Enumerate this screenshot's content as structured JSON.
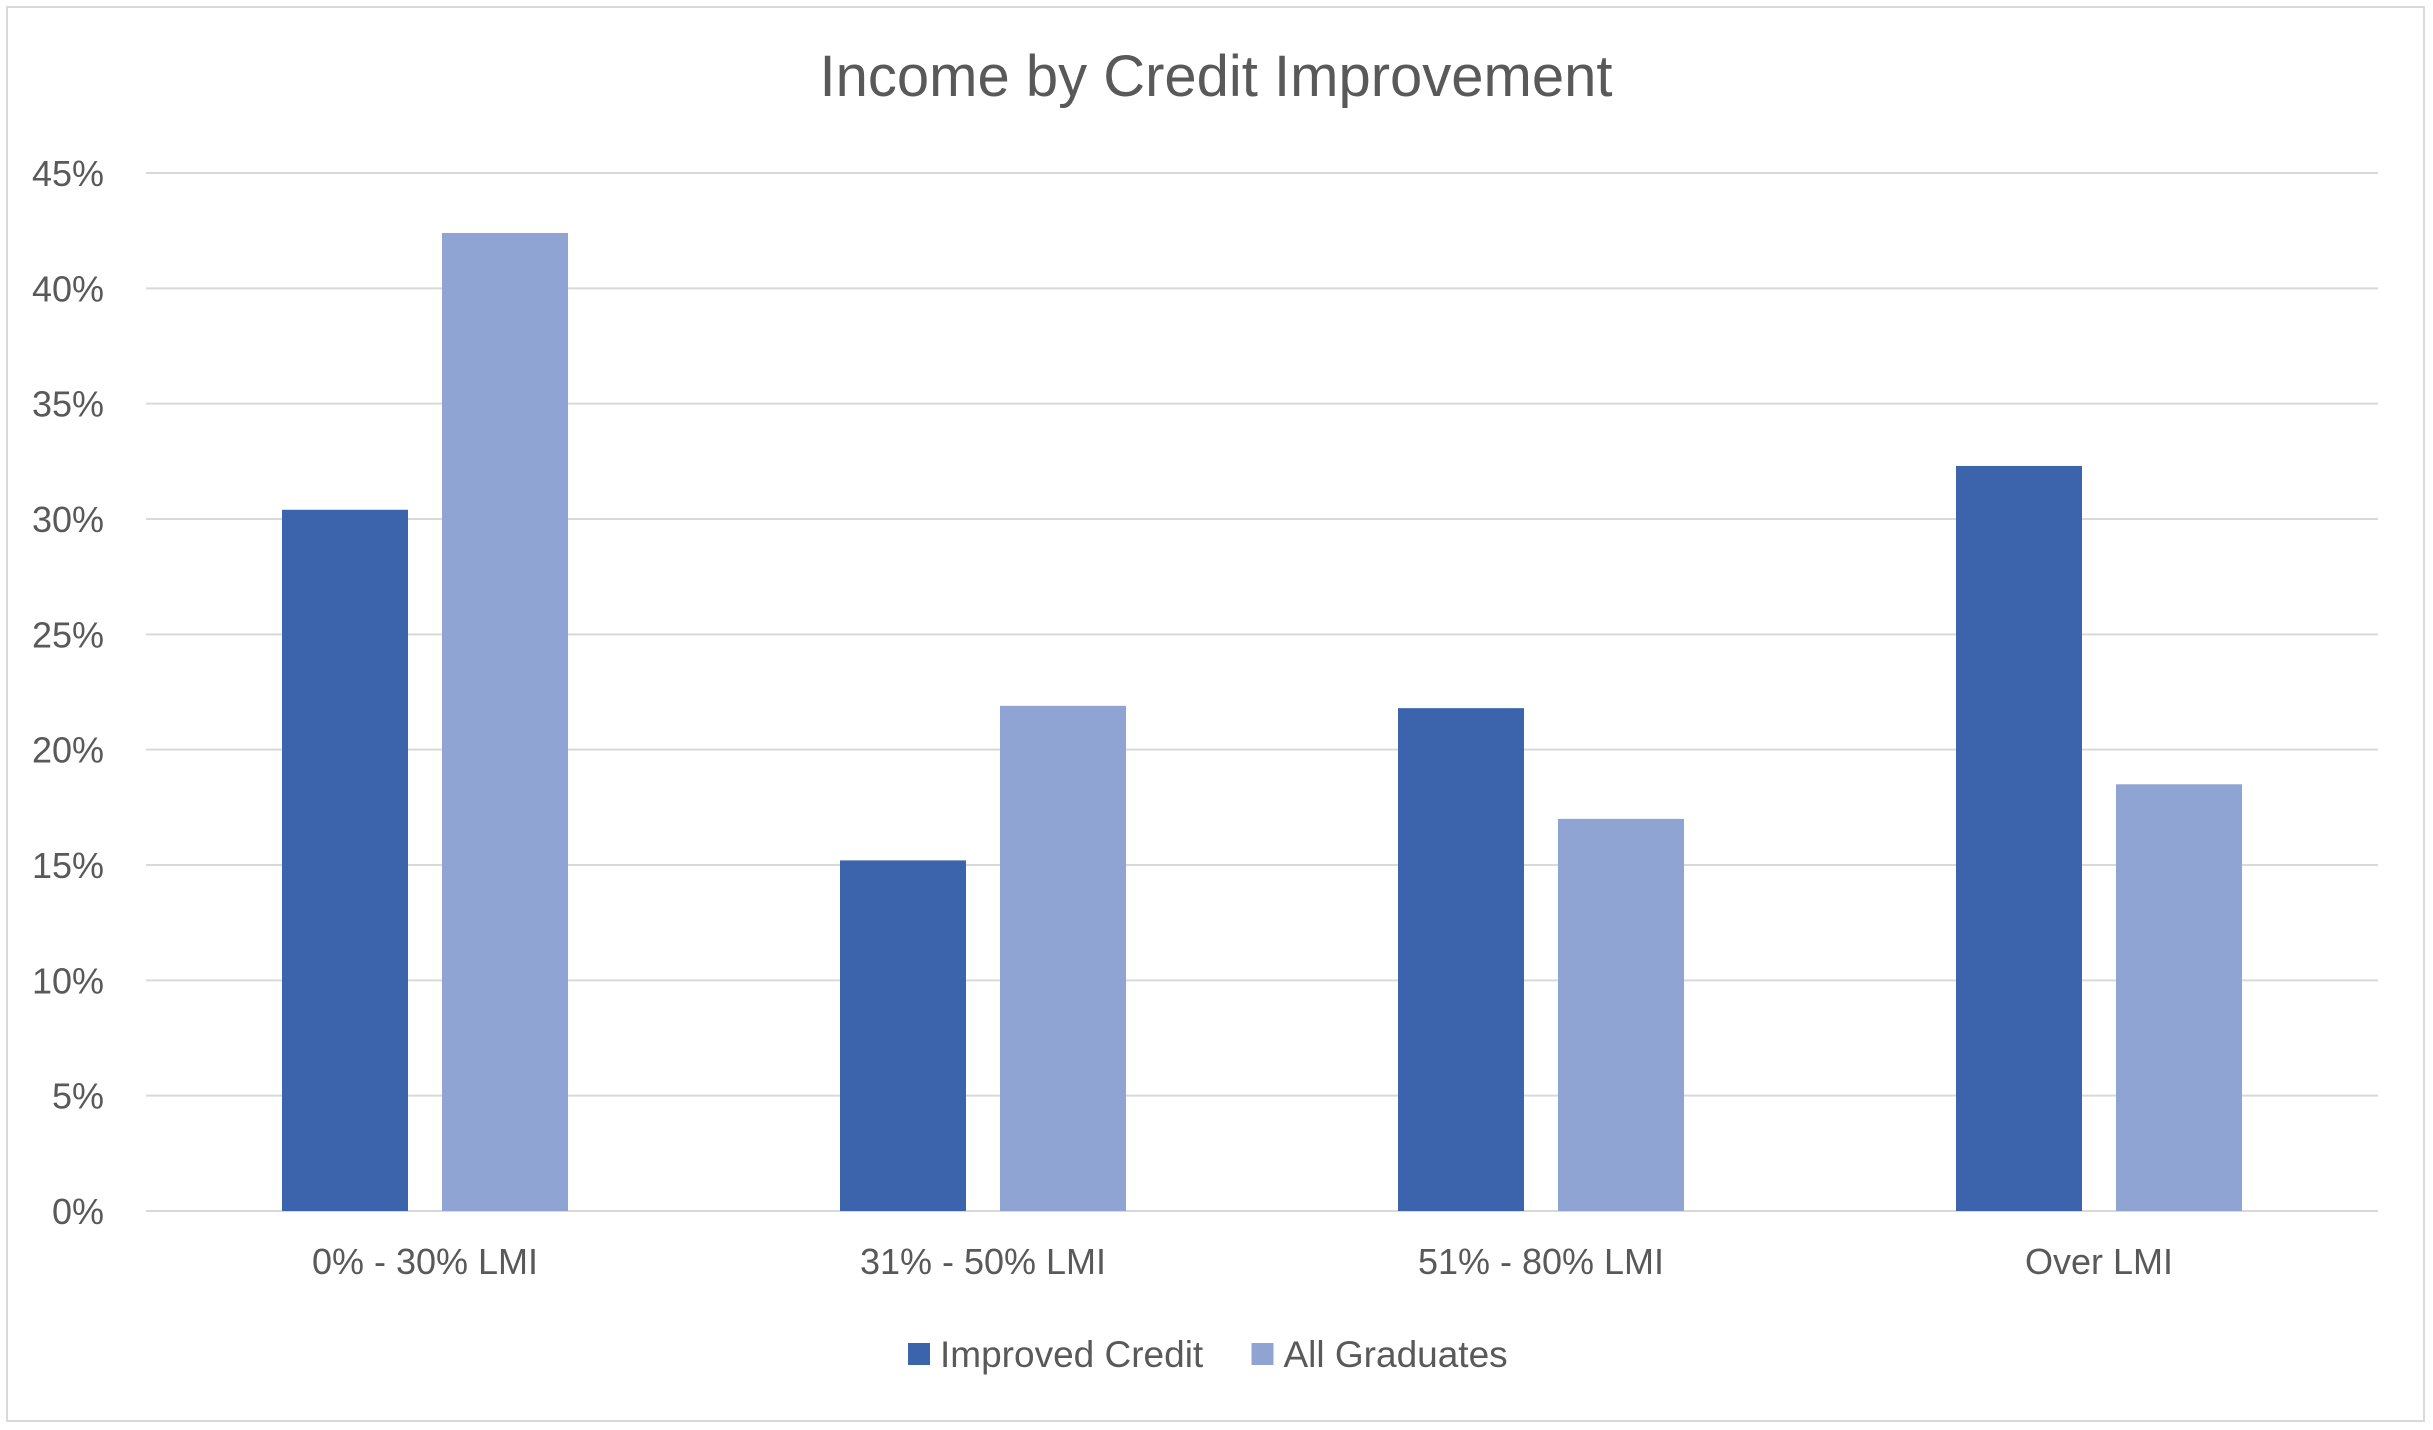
{
  "chart_data": {
    "type": "bar",
    "title": "Income by Credit Improvement",
    "categories": [
      "0% - 30% LMI",
      "31% - 50% LMI",
      "51% - 80% LMI",
      "Over LMI"
    ],
    "series": [
      {
        "name": "Improved Credit",
        "color": "#3c64ac",
        "values": [
          30.4,
          15.2,
          21.8,
          32.3
        ]
      },
      {
        "name": "All Graduates",
        "color": "#90a4d4",
        "values": [
          42.4,
          21.9,
          17.0,
          18.5
        ]
      }
    ],
    "y_ticks": [
      "0%",
      "5%",
      "10%",
      "15%",
      "20%",
      "25%",
      "30%",
      "35%",
      "40%",
      "45%"
    ],
    "ylim": [
      0,
      45
    ],
    "y_unit": "%",
    "grid": true,
    "legend_position": "bottom",
    "colors": {
      "gridline": "#d9d9d9",
      "text": "#595959",
      "border": "#d9d9d9"
    }
  }
}
